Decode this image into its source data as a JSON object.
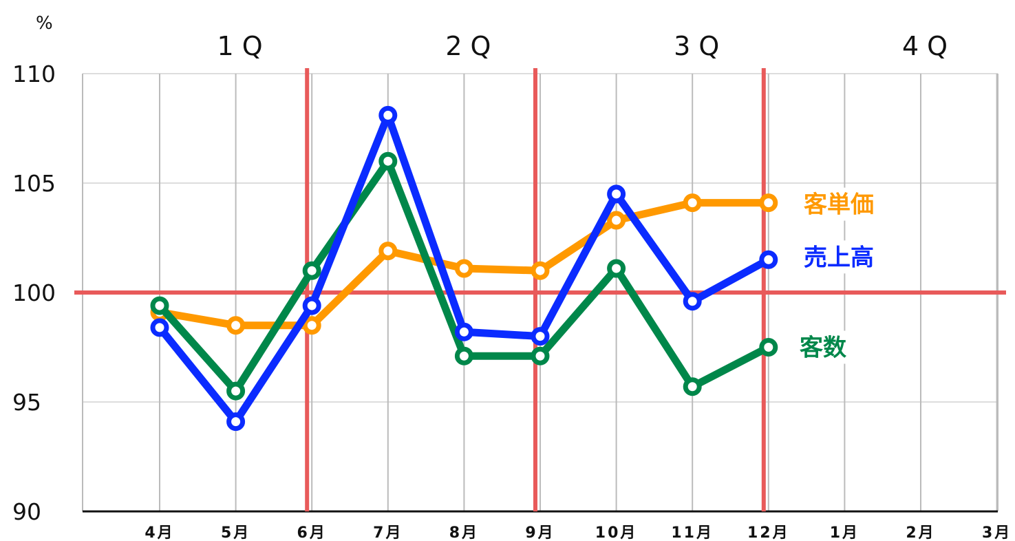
{
  "chart_data": {
    "type": "line",
    "title": "",
    "xlabel": "",
    "ylabel": "%",
    "ylim": [
      90,
      110
    ],
    "yticks": [
      90,
      95,
      100,
      105,
      110
    ],
    "categories": [
      "4月",
      "5月",
      "6月",
      "7月",
      "8月",
      "9月",
      "10月",
      "11月",
      "12月",
      "1月",
      "2月",
      "3月"
    ],
    "quarters": [
      "1Q",
      "2Q",
      "3Q",
      "4Q"
    ],
    "reference_line": 100,
    "quarter_dividers_after": [
      "6月",
      "9月",
      "12月"
    ],
    "grid": true,
    "legend": "direct labels at right end of lines",
    "series": [
      {
        "name": "客単価",
        "color": "#FF9900",
        "values": [
          99.1,
          98.5,
          98.5,
          101.9,
          101.1,
          101.0,
          103.3,
          104.1,
          104.1,
          null,
          null,
          null
        ]
      },
      {
        "name": "売上高",
        "color": "#0B2BFF",
        "values": [
          98.4,
          94.1,
          99.4,
          108.1,
          98.2,
          98.0,
          104.5,
          99.6,
          101.5,
          null,
          null,
          null
        ]
      },
      {
        "name": "客数",
        "color": "#00874A",
        "values": [
          99.4,
          95.5,
          101.0,
          106.0,
          97.1,
          97.1,
          101.1,
          95.7,
          97.5,
          null,
          null,
          null
        ]
      }
    ]
  },
  "colors": {
    "grid": "#bbbbbb",
    "reference": "#E85A5A",
    "axis": "#111111"
  }
}
